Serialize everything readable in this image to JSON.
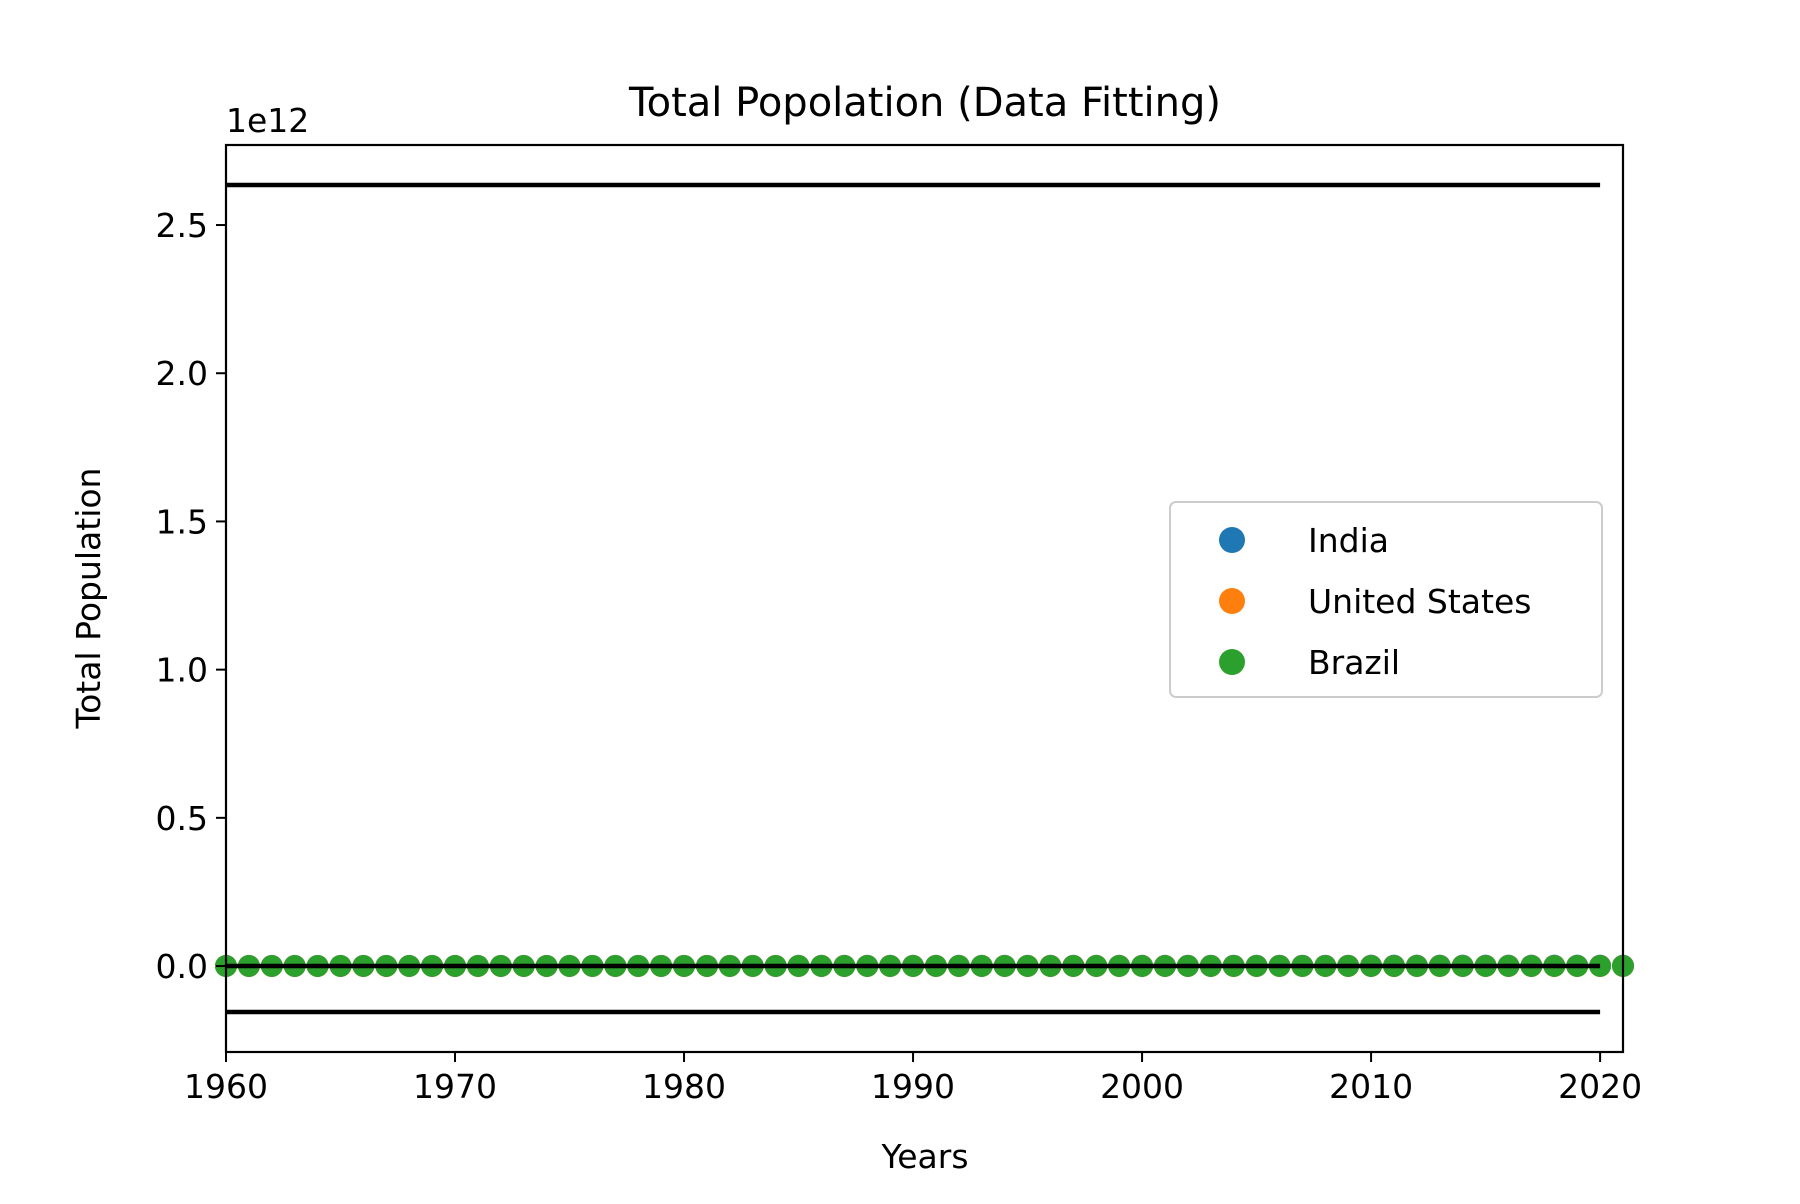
{
  "chart_data": {
    "type": "scatter",
    "title": "Total Popolation (Data Fitting)",
    "xlabel": "Years",
    "ylabel": "Total Population",
    "y_offset_label": "1e12",
    "xlim": [
      1960,
      2021
    ],
    "ylim": [
      -0.29,
      2.77
    ],
    "y_scale_multiplier": 1000000000000.0,
    "x_ticks": [
      1960,
      1970,
      1980,
      1990,
      2000,
      2010,
      2020
    ],
    "x_tick_labels": [
      "1960",
      "1970",
      "1980",
      "1990",
      "2000",
      "2010",
      "2020"
    ],
    "y_ticks": [
      0.0,
      0.5,
      1.0,
      1.5,
      2.0,
      2.5
    ],
    "y_tick_labels": [
      "0.0",
      "0.5",
      "1.0",
      "1.5",
      "2.0",
      "2.5"
    ],
    "x": [
      1960,
      1961,
      1962,
      1963,
      1964,
      1965,
      1966,
      1967,
      1968,
      1969,
      1970,
      1971,
      1972,
      1973,
      1974,
      1975,
      1976,
      1977,
      1978,
      1979,
      1980,
      1981,
      1982,
      1983,
      1984,
      1985,
      1986,
      1987,
      1988,
      1989,
      1990,
      1991,
      1992,
      1993,
      1994,
      1995,
      1996,
      1997,
      1998,
      1999,
      2000,
      2001,
      2002,
      2003,
      2004,
      2005,
      2006,
      2007,
      2008,
      2009,
      2010,
      2011,
      2012,
      2013,
      2014,
      2015,
      2016,
      2017,
      2018,
      2019,
      2020,
      2021
    ],
    "series": [
      {
        "name": "India",
        "color": "#1f77b4",
        "marker": "circle",
        "values": [
          0.00045,
          0.00046,
          0.00047,
          0.00048,
          0.00049,
          0.0005,
          0.00051,
          0.00052,
          0.00053,
          0.00054,
          0.00056,
          0.00057,
          0.00058,
          0.0006,
          0.00061,
          0.00062,
          0.00064,
          0.00065,
          0.00067,
          0.00068,
          0.0007,
          0.00071,
          0.00073,
          0.00075,
          0.00076,
          0.00078,
          0.0008,
          0.00081,
          0.00083,
          0.00085,
          0.00087,
          0.00089,
          0.0009,
          0.00092,
          0.00094,
          0.00096,
          0.00098,
          0.001,
          0.00101,
          0.00103,
          0.00105,
          0.00107,
          0.00109,
          0.0011,
          0.00112,
          0.00114,
          0.00116,
          0.00117,
          0.00119,
          0.0012,
          0.00122,
          0.00124,
          0.00125,
          0.00127,
          0.00128,
          0.0013,
          0.00131,
          0.00133,
          0.00134,
          0.00136,
          0.00137,
          0.00139
        ]
      },
      {
        "name": "United States",
        "color": "#ff7f0e",
        "marker": "circle",
        "values": [
          0.00018,
          0.00018,
          0.00019,
          0.00019,
          0.00019,
          0.00019,
          0.0002,
          0.0002,
          0.0002,
          0.0002,
          0.0002,
          0.00021,
          0.00021,
          0.00021,
          0.00021,
          0.00022,
          0.00022,
          0.00022,
          0.00022,
          0.00023,
          0.00023,
          0.00023,
          0.00023,
          0.00023,
          0.00024,
          0.00024,
          0.00024,
          0.00024,
          0.00024,
          0.00025,
          0.00025,
          0.00025,
          0.00026,
          0.00026,
          0.00026,
          0.00027,
          0.00027,
          0.00027,
          0.00028,
          0.00028,
          0.00028,
          0.00028,
          0.00029,
          0.00029,
          0.00029,
          0.0003,
          0.0003,
          0.0003,
          0.0003,
          0.00031,
          0.00031,
          0.00031,
          0.00031,
          0.00032,
          0.00032,
          0.00032,
          0.00032,
          0.00033,
          0.00033,
          0.00033,
          0.00033,
          0.00033
        ]
      },
      {
        "name": "Brazil",
        "color": "#2ca02c",
        "marker": "circle",
        "values": [
          7e-05,
          7e-05,
          8e-05,
          8e-05,
          8e-05,
          8e-05,
          9e-05,
          9e-05,
          9e-05,
          9e-05,
          0.0001,
          0.0001,
          0.0001,
          0.0001,
          0.00011,
          0.00011,
          0.00011,
          0.00012,
          0.00012,
          0.00012,
          0.00012,
          0.00013,
          0.00013,
          0.00013,
          0.00013,
          0.00014,
          0.00014,
          0.00014,
          0.00014,
          0.00015,
          0.00015,
          0.00015,
          0.00016,
          0.00016,
          0.00016,
          0.00016,
          0.00017,
          0.00017,
          0.00017,
          0.00017,
          0.00017,
          0.00018,
          0.00018,
          0.00018,
          0.00018,
          0.00019,
          0.00019,
          0.00019,
          0.00019,
          0.00019,
          0.00019,
          0.0002,
          0.0002,
          0.0002,
          0.0002,
          0.0002,
          0.0002,
          0.00021,
          0.00021,
          0.00021,
          0.00021,
          0.00021
        ]
      }
    ],
    "fit_lines": [
      {
        "color": "#000000",
        "x_range": [
          1960,
          2020
        ],
        "values": [
          2.635,
          2.635
        ]
      },
      {
        "color": "#000000",
        "x_range": [
          1960,
          2020
        ],
        "values": [
          0.0,
          0.0
        ]
      },
      {
        "color": "#000000",
        "x_range": [
          1960,
          2020
        ],
        "values": [
          -0.155,
          -0.155
        ]
      }
    ],
    "grid": false,
    "legend_position": "center-right"
  }
}
